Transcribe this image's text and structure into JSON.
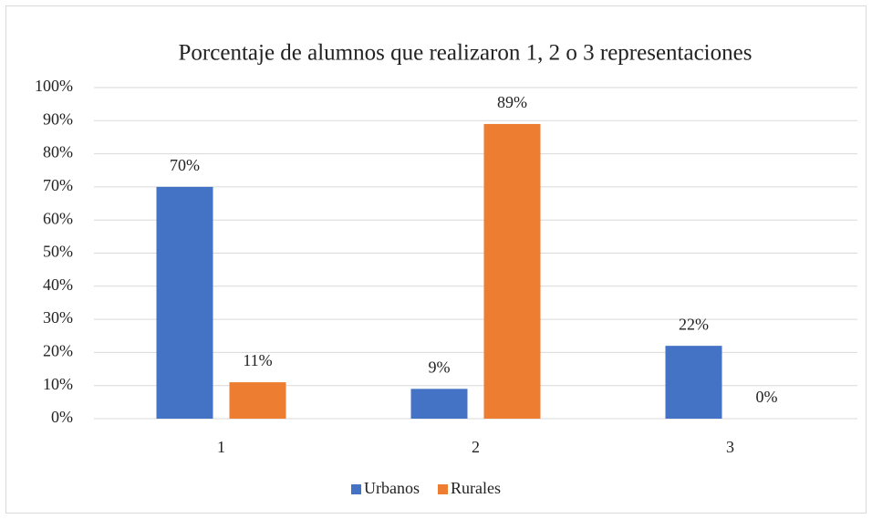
{
  "chart_data": {
    "type": "bar",
    "title": "Porcentaje de alumnos que realizaron 1, 2 o  3 representaciones",
    "categories": [
      "1",
      "2",
      "3"
    ],
    "series": [
      {
        "name": "Urbanos",
        "color": "#4472c4",
        "values": [
          70,
          9,
          22
        ],
        "value_labels": [
          "70%",
          "9%",
          "22%"
        ]
      },
      {
        "name": "Rurales",
        "color": "#ed7d31",
        "values": [
          11,
          89,
          0
        ],
        "value_labels": [
          "11%",
          "89%",
          "0%"
        ]
      }
    ],
    "ylim": [
      0,
      100
    ],
    "yticks": [
      {
        "value": 0,
        "label": "0%"
      },
      {
        "value": 10,
        "label": "10%"
      },
      {
        "value": 20,
        "label": "20%"
      },
      {
        "value": 30,
        "label": "30%"
      },
      {
        "value": 40,
        "label": "40%"
      },
      {
        "value": 50,
        "label": "50%"
      },
      {
        "value": 60,
        "label": "60%"
      },
      {
        "value": 70,
        "label": "70%"
      },
      {
        "value": 80,
        "label": "80%"
      },
      {
        "value": 90,
        "label": "90%"
      },
      {
        "value": 100,
        "label": "100%"
      }
    ],
    "grid": true,
    "legend": "bottom"
  }
}
